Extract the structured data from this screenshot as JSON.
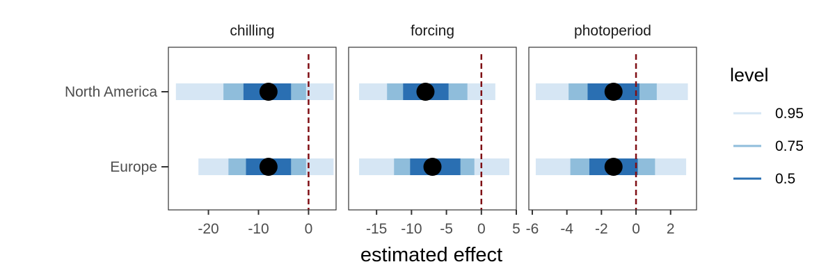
{
  "chart_data": {
    "type": "interval",
    "xlabel": "estimated effect",
    "categories": [
      "North America",
      "Europe"
    ],
    "legend": {
      "title": "level",
      "position": "right",
      "items": [
        {
          "label": "0.95",
          "color": "#d6e6f4"
        },
        {
          "label": "0.75",
          "color": "#8fbddb"
        },
        {
          "label": "0.5",
          "color": "#2a6fb2"
        }
      ]
    },
    "reference_line": {
      "x": 0,
      "color": "#7f0e14",
      "style": "dashed"
    },
    "point_color": "#000000",
    "panels": [
      {
        "title": "chilling",
        "xlim": [
          -28,
          5.5
        ],
        "ticks": [
          -20,
          -10,
          0
        ],
        "tick_labels": [
          "-20",
          "-10",
          "0"
        ],
        "rows": [
          {
            "region": "North America",
            "estimate": -8,
            "i95": [
              -26.5,
              5
            ],
            "i75": [
              -17,
              -0.5
            ],
            "i50": [
              -13,
              -3.5
            ]
          },
          {
            "region": "Europe",
            "estimate": -8,
            "i95": [
              -22,
              5
            ],
            "i75": [
              -16,
              -0.5
            ],
            "i50": [
              -12.5,
              -3.5
            ]
          }
        ]
      },
      {
        "title": "forcing",
        "xlim": [
          -19,
          5
        ],
        "ticks": [
          -15,
          -10,
          -5,
          0,
          5
        ],
        "tick_labels": [
          "-15",
          "-10",
          "-5",
          "0",
          "5"
        ],
        "rows": [
          {
            "region": "North America",
            "estimate": -8,
            "i95": [
              -17.5,
              2
            ],
            "i75": [
              -13.5,
              -2
            ],
            "i50": [
              -11.2,
              -4.7
            ]
          },
          {
            "region": "Europe",
            "estimate": -7,
            "i95": [
              -17.5,
              4
            ],
            "i75": [
              -12.5,
              -1
            ],
            "i50": [
              -10.2,
              -3
            ]
          }
        ]
      },
      {
        "title": "photoperiod",
        "xlim": [
          -6.2,
          3.5
        ],
        "ticks": [
          -6,
          -4,
          -2,
          0,
          2
        ],
        "tick_labels": [
          "-6",
          "-4",
          "-2",
          "0",
          "2"
        ],
        "rows": [
          {
            "region": "North America",
            "estimate": -1.3,
            "i95": [
              -5.8,
              3
            ],
            "i75": [
              -3.9,
              1.2
            ],
            "i50": [
              -2.8,
              0.2
            ]
          },
          {
            "region": "Europe",
            "estimate": -1.3,
            "i95": [
              -5.8,
              2.9
            ],
            "i75": [
              -3.8,
              1.1
            ],
            "i50": [
              -2.7,
              0.1
            ]
          }
        ]
      }
    ]
  }
}
